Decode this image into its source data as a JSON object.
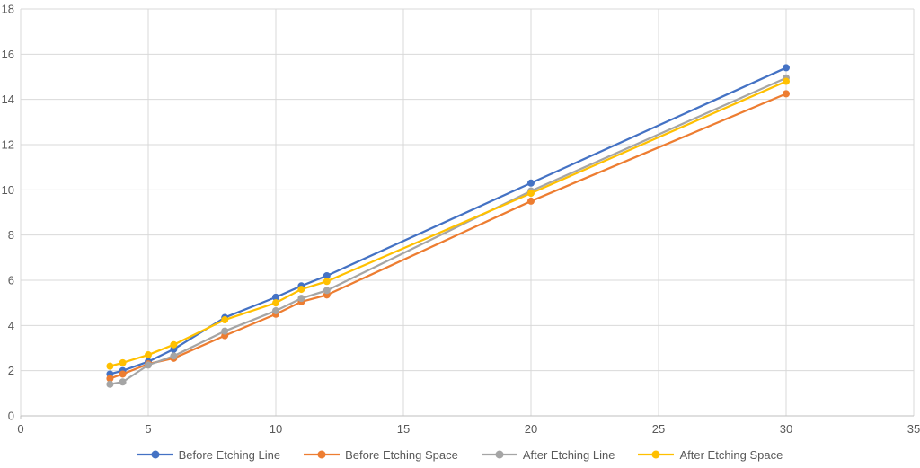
{
  "chart_data": {
    "type": "line",
    "title": "",
    "xlabel": "",
    "ylabel": "",
    "xlim": [
      0,
      35
    ],
    "ylim": [
      0,
      18
    ],
    "x_ticks": [
      0,
      5,
      10,
      15,
      20,
      25,
      30,
      35
    ],
    "y_ticks": [
      0,
      2,
      4,
      6,
      8,
      10,
      12,
      14,
      16,
      18
    ],
    "grid": true,
    "legend_position": "bottom",
    "x": [
      3.5,
      4,
      5,
      6,
      8,
      10,
      11,
      12,
      20,
      30
    ],
    "series": [
      {
        "name": "Before Etching Line",
        "color": "#4472C4",
        "values": [
          1.85,
          2.0,
          2.4,
          2.95,
          4.35,
          5.25,
          5.75,
          6.2,
          10.3,
          15.4
        ]
      },
      {
        "name": "Before Etching Space",
        "color": "#ED7D31",
        "values": [
          1.65,
          1.85,
          2.3,
          2.55,
          3.55,
          4.5,
          5.05,
          5.35,
          9.5,
          14.25
        ]
      },
      {
        "name": "After Etching Line",
        "color": "#A5A5A5",
        "values": [
          1.4,
          1.5,
          2.25,
          2.65,
          3.75,
          4.65,
          5.2,
          5.55,
          9.95,
          14.95
        ]
      },
      {
        "name": "After Etching Space",
        "color": "#FFC000",
        "values": [
          2.2,
          2.35,
          2.7,
          3.15,
          4.25,
          5.0,
          5.6,
          5.95,
          9.85,
          14.8
        ]
      }
    ],
    "colors": {
      "gridline": "#D9D9D9",
      "axis_line": "#BFBFBF",
      "axis_text": "#595959",
      "background": "#FFFFFF"
    }
  }
}
